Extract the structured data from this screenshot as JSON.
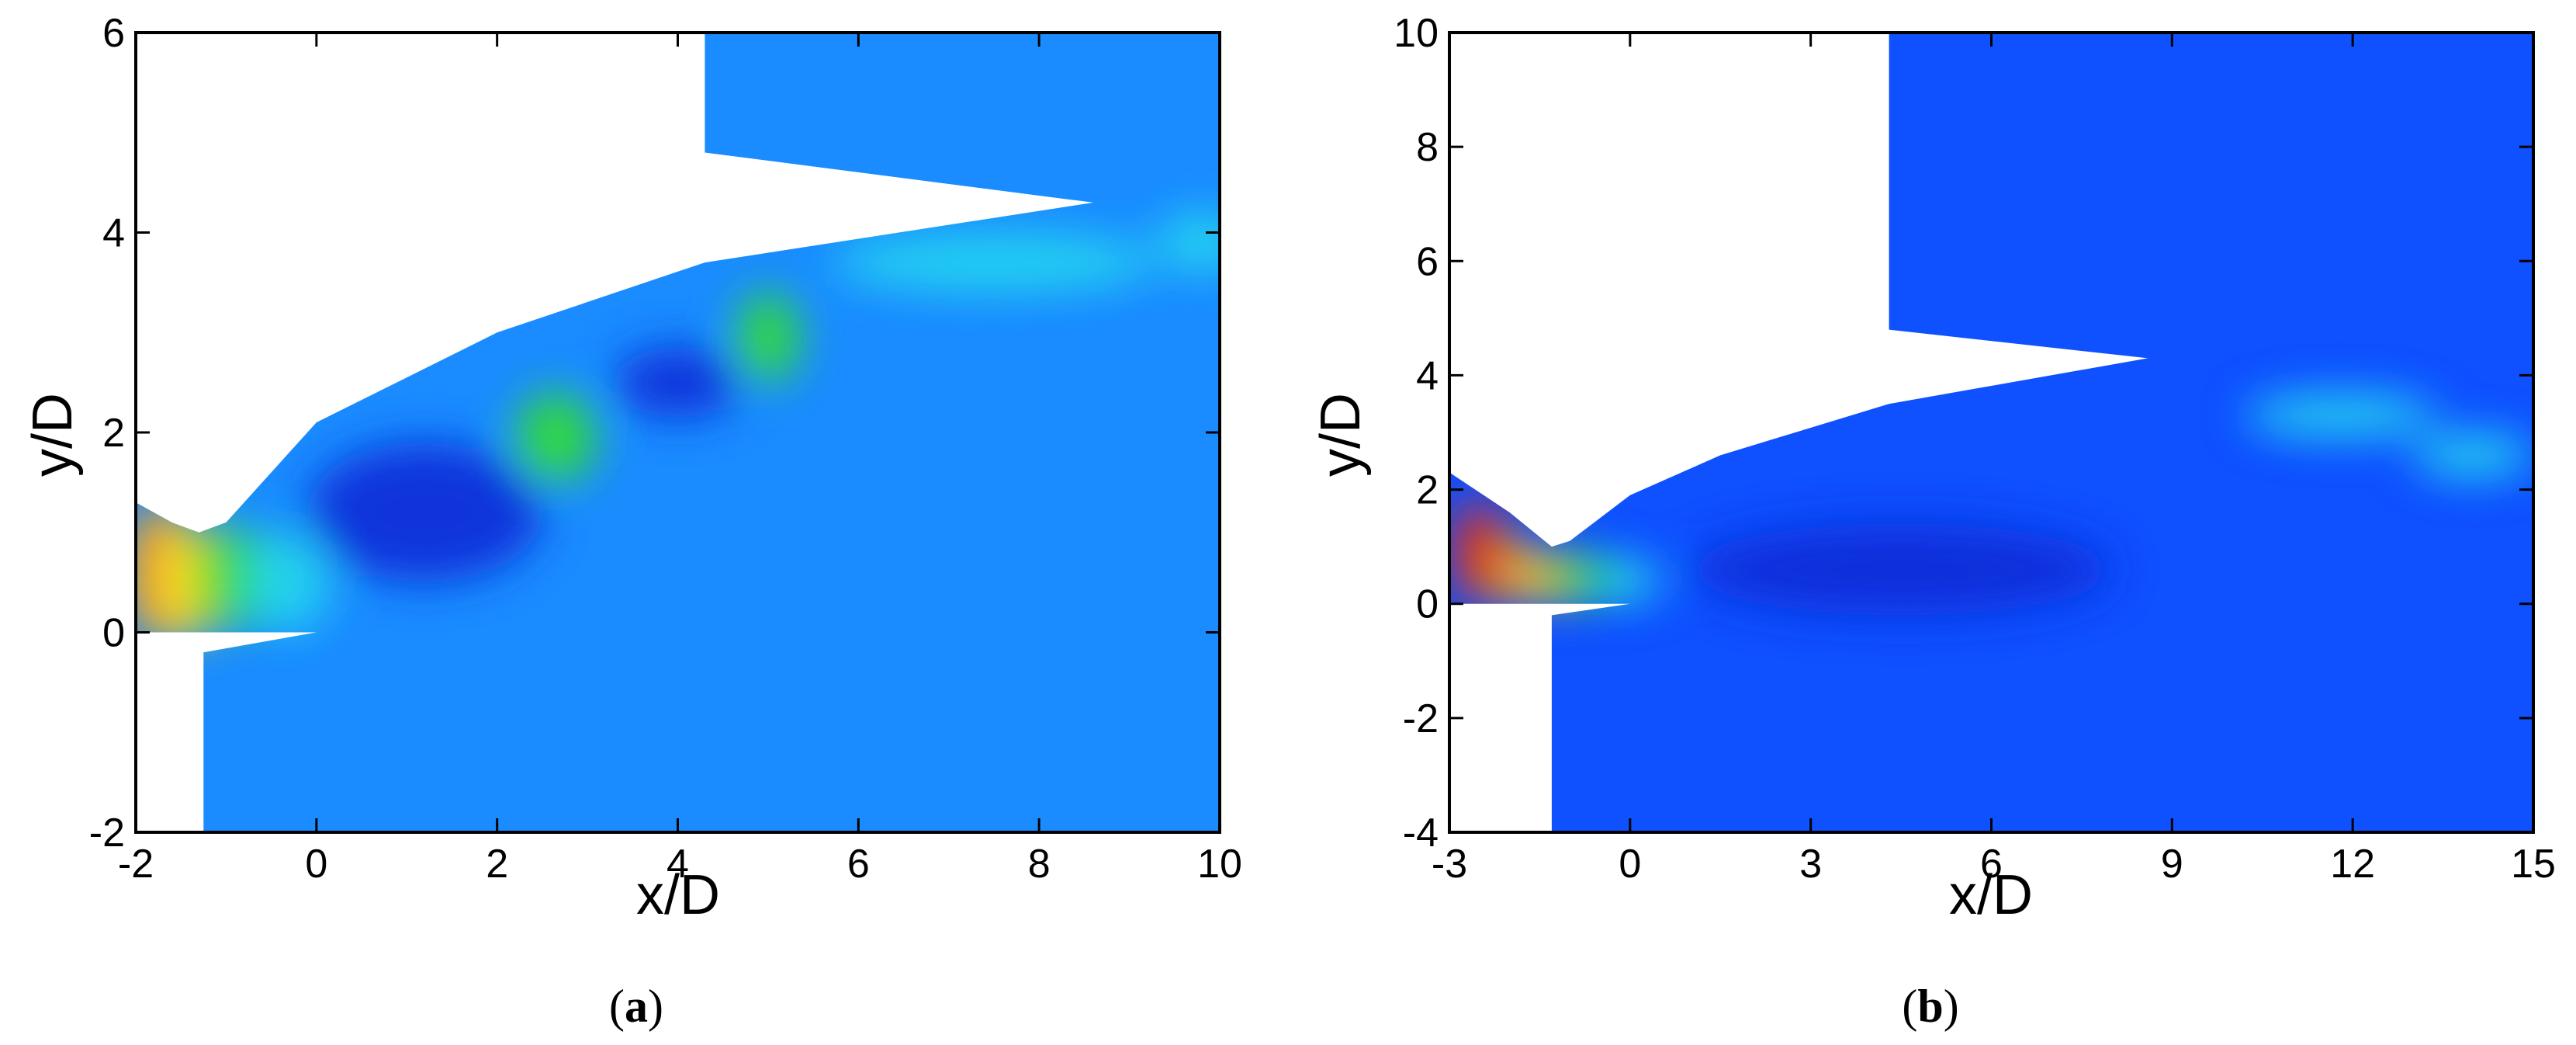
{
  "colors": {
    "field_base_a": "#1a8cff",
    "field_base_b": "#0f50ff",
    "green": "#33e02a",
    "cyan": "#22d6f0",
    "dark_blue": "#0b2ad8",
    "yellow": "#ffe020",
    "orange": "#ff9a1a",
    "red": "#e42a10"
  },
  "chart_data": [
    {
      "type": "heatmap",
      "panel_label": "a",
      "caption_open": "(",
      "caption_close": ")",
      "xlabel": "x/D",
      "ylabel": "y/D",
      "xlim": [
        -2,
        10
      ],
      "ylim": [
        -2,
        6
      ],
      "xticks": [
        -2,
        0,
        2,
        4,
        6,
        8,
        10
      ],
      "yticks": [
        -2,
        0,
        2,
        4,
        6
      ],
      "grid": false,
      "legend": "none",
      "nozzle_exit": [
        -1.3,
        1.0
      ],
      "solid_regions": [
        [
          [
            -2,
            -2
          ],
          [
            -1.25,
            -2
          ],
          [
            -1.25,
            -0.2
          ],
          [
            0,
            0
          ],
          [
            -2,
            0
          ]
        ],
        [
          [
            -2,
            6
          ],
          [
            4.3,
            6
          ],
          [
            4.3,
            4.8
          ],
          [
            8.6,
            4.3
          ],
          [
            4.3,
            3.7
          ],
          [
            2.0,
            3.0
          ],
          [
            0,
            2.1
          ],
          [
            -1.0,
            1.1
          ],
          [
            -1.3,
            1.0
          ],
          [
            -1.6,
            1.1
          ],
          [
            -2,
            1.3
          ]
        ]
      ],
      "features": [
        {
          "kind": "inflow",
          "color": "orange",
          "x": -1.75,
          "y": 0.6,
          "rx": 0.4,
          "ry": 0.7
        },
        {
          "kind": "inflow",
          "color": "yellow",
          "x": -1.45,
          "y": 0.5,
          "rx": 0.3,
          "ry": 0.6
        },
        {
          "kind": "core",
          "color": "green",
          "x": -0.9,
          "y": 0.55,
          "rx": 0.45,
          "ry": 0.5
        },
        {
          "kind": "core",
          "color": "cyan",
          "x": -0.3,
          "y": 0.5,
          "rx": 0.45,
          "ry": 0.5
        },
        {
          "kind": "expansion",
          "color": "dark_blue",
          "x": 1.2,
          "y": 1.2,
          "rx": 1.3,
          "ry": 0.7
        },
        {
          "kind": "shock_cell",
          "color": "green",
          "x": 2.65,
          "y": 1.95,
          "rx": 0.45,
          "ry": 0.45
        },
        {
          "kind": "expansion",
          "color": "dark_blue",
          "x": 4.0,
          "y": 2.5,
          "rx": 0.7,
          "ry": 0.35
        },
        {
          "kind": "shock_cell",
          "color": "green",
          "x": 5.0,
          "y": 2.95,
          "rx": 0.35,
          "ry": 0.45
        },
        {
          "kind": "shear",
          "color": "cyan",
          "x": 7.5,
          "y": 3.7,
          "rx": 1.8,
          "ry": 0.3
        },
        {
          "kind": "shear",
          "color": "cyan",
          "x": 9.8,
          "y": 3.9,
          "rx": 0.5,
          "ry": 0.3
        }
      ]
    },
    {
      "type": "heatmap",
      "panel_label": "b",
      "caption_open": "(",
      "caption_close": ")",
      "xlabel": "x/D",
      "ylabel": "y/D",
      "xlim": [
        -3,
        15
      ],
      "ylim": [
        -4,
        10
      ],
      "xticks": [
        -3,
        0,
        3,
        6,
        9,
        12,
        15
      ],
      "yticks": [
        -4,
        -2,
        0,
        2,
        4,
        6,
        8,
        10
      ],
      "grid": false,
      "legend": "none",
      "nozzle_exit": [
        -1.3,
        1.0
      ],
      "solid_regions": [
        [
          [
            -3,
            -4
          ],
          [
            -1.3,
            -4
          ],
          [
            -1.3,
            -0.2
          ],
          [
            0,
            0
          ],
          [
            -3,
            0
          ]
        ],
        [
          [
            -3,
            10
          ],
          [
            4.3,
            10
          ],
          [
            4.3,
            4.8
          ],
          [
            8.6,
            4.3
          ],
          [
            4.3,
            3.5
          ],
          [
            1.5,
            2.6
          ],
          [
            0,
            1.9
          ],
          [
            -1.0,
            1.1
          ],
          [
            -1.3,
            1.0
          ],
          [
            -2.0,
            1.6
          ],
          [
            -3,
            2.3
          ]
        ]
      ],
      "features": [
        {
          "kind": "inflow",
          "color": "red",
          "x": -2.5,
          "y": 0.9,
          "rx": 0.5,
          "ry": 0.9
        },
        {
          "kind": "inflow",
          "color": "orange",
          "x": -1.9,
          "y": 0.55,
          "rx": 0.4,
          "ry": 0.55
        },
        {
          "kind": "inflow",
          "color": "yellow",
          "x": -1.4,
          "y": 0.45,
          "rx": 0.3,
          "ry": 0.45
        },
        {
          "kind": "core",
          "color": "green",
          "x": -0.7,
          "y": 0.45,
          "rx": 0.6,
          "ry": 0.45
        },
        {
          "kind": "core",
          "color": "cyan",
          "x": 0.0,
          "y": 0.4,
          "rx": 0.5,
          "ry": 0.4
        },
        {
          "kind": "expansion",
          "color": "dark_blue",
          "x": 4.5,
          "y": 0.6,
          "rx": 3.5,
          "ry": 0.8
        },
        {
          "kind": "shear",
          "color": "cyan",
          "x": 11.8,
          "y": 3.3,
          "rx": 1.6,
          "ry": 0.4
        },
        {
          "kind": "shear",
          "color": "cyan",
          "x": 14.0,
          "y": 2.6,
          "rx": 1.0,
          "ry": 0.4
        }
      ]
    }
  ]
}
